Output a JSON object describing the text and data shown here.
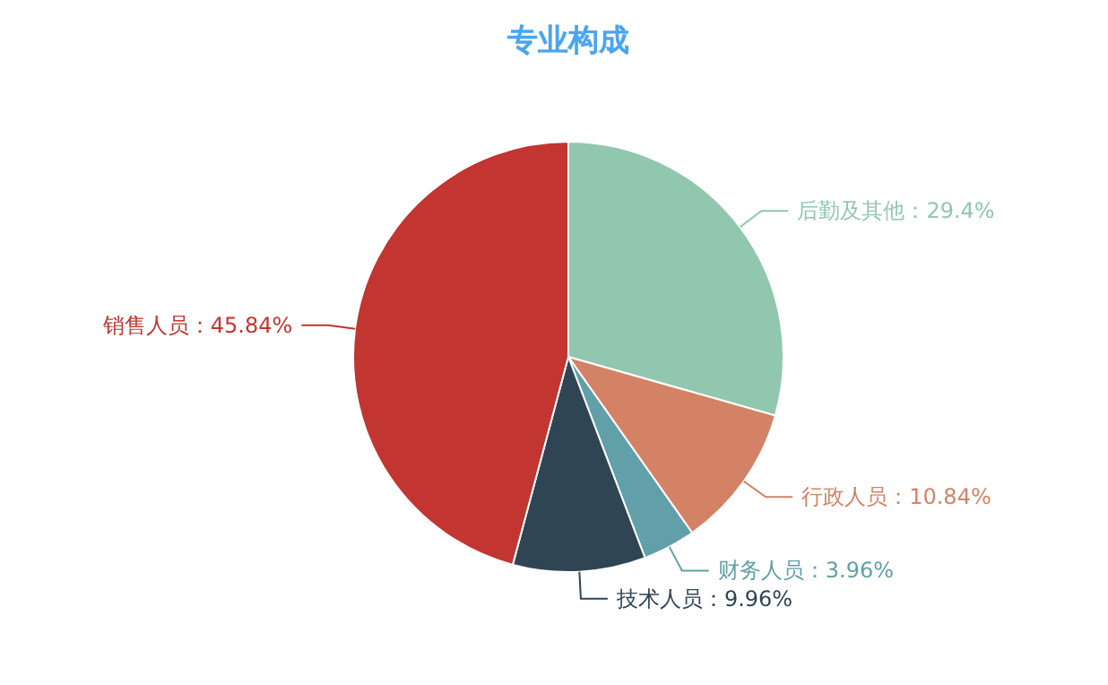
{
  "chart_data": {
    "type": "pie",
    "title": "专业构成",
    "categories": [
      "后勤及其他",
      "行政人员",
      "财务人员",
      "技术人员",
      "销售人员"
    ],
    "values": [
      29.4,
      10.84,
      3.96,
      9.96,
      45.84
    ],
    "value_labels": [
      "29.4%",
      "10.84%",
      "3.96%",
      "9.96%",
      "45.84%"
    ],
    "colors": [
      "#91c7ae",
      "#d48265",
      "#61a0a8",
      "#2f4554",
      "#c23531"
    ]
  }
}
